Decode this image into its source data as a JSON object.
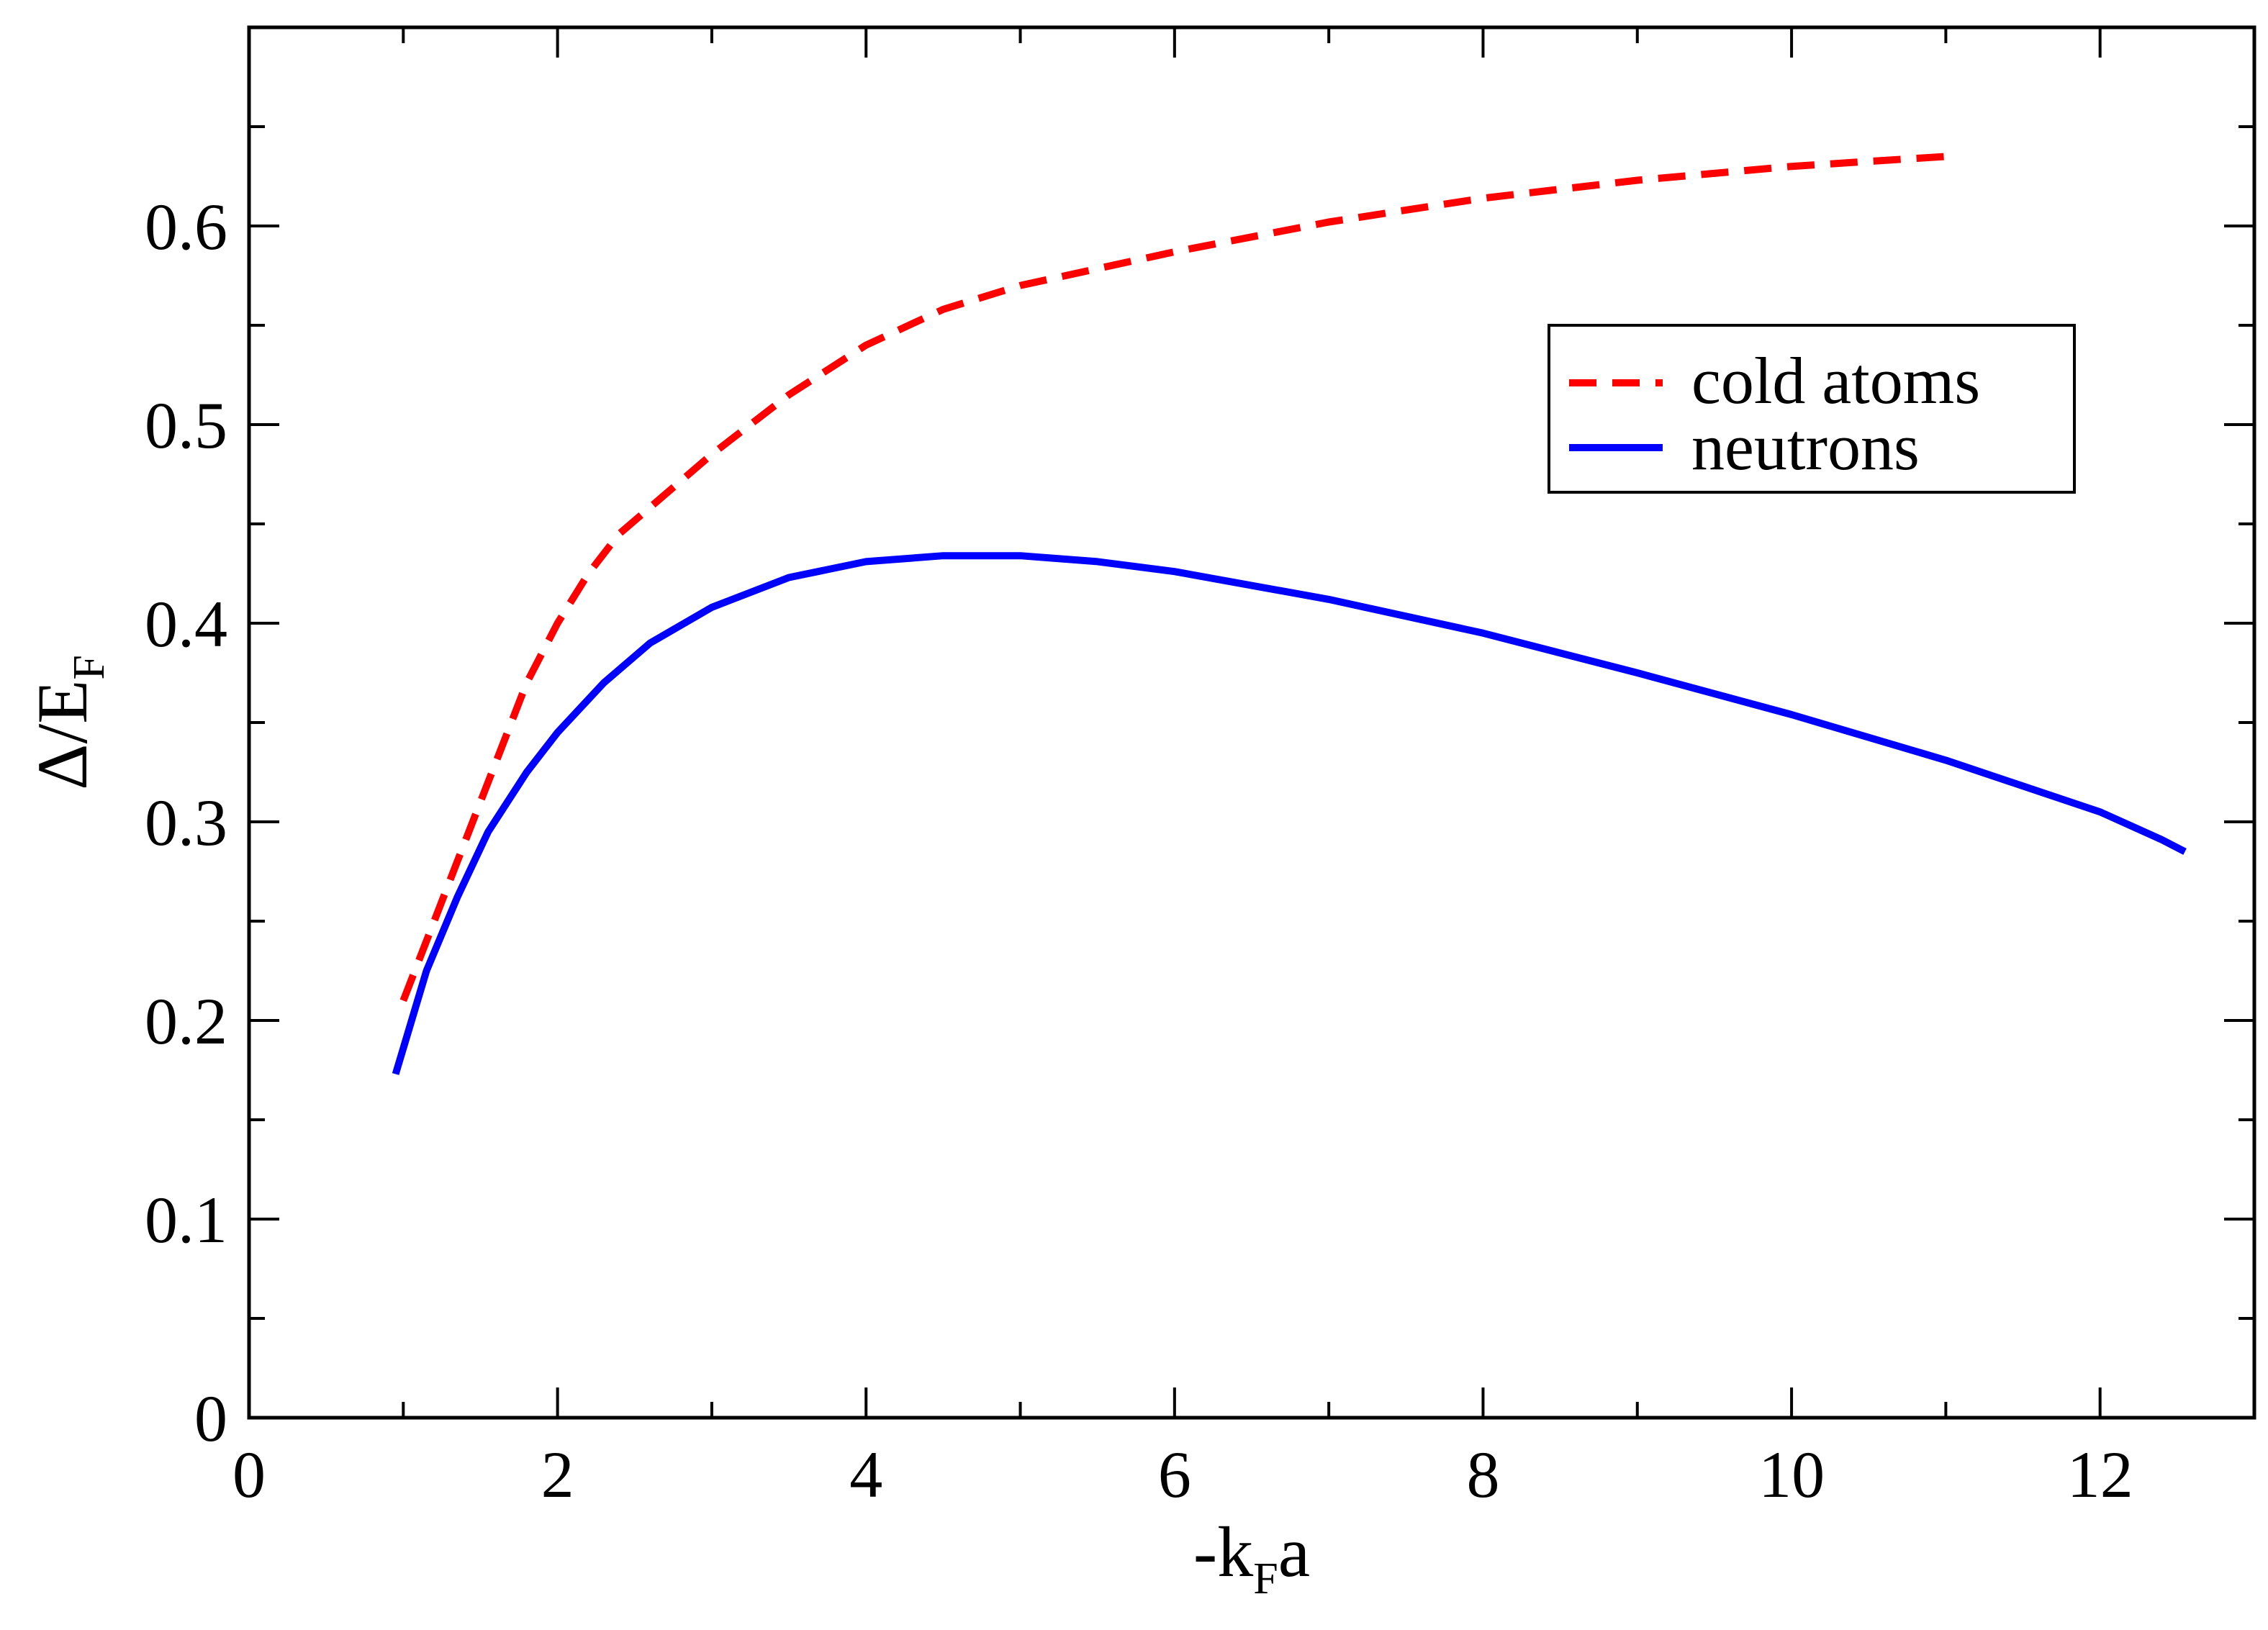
{
  "chart_data": {
    "type": "line",
    "title": "",
    "xlabel": {
      "prefix": "-k",
      "sub": "F",
      "suffix": "a"
    },
    "ylabel": {
      "prefix": "Δ/E",
      "sub": "F"
    },
    "xlim": [
      0,
      13
    ],
    "ylim": [
      0,
      0.7
    ],
    "x_ticks": [
      0,
      2,
      4,
      6,
      8,
      10,
      12
    ],
    "y_ticks": [
      0,
      0.1,
      0.2,
      0.3,
      0.4,
      0.5,
      0.6
    ],
    "x_tick_labels": [
      "0",
      "2",
      "4",
      "6",
      "8",
      "10",
      "12"
    ],
    "y_tick_labels": [
      "0",
      "0.1",
      "0.2",
      "0.3",
      "0.4",
      "0.5",
      "0.6"
    ],
    "grid": false,
    "legend_position": "right",
    "series": [
      {
        "name": "cold atoms",
        "color": "#ff0000",
        "style": "dashed",
        "x": [
          1.0,
          1.2,
          1.4,
          1.6,
          1.8,
          2.0,
          2.2,
          2.4,
          2.7,
          3.0,
          3.5,
          4.0,
          4.5,
          5.0,
          6.0,
          7.0,
          8.0,
          9.0,
          10.0,
          11.0
        ],
        "y": [
          0.21,
          0.25,
          0.29,
          0.33,
          0.37,
          0.4,
          0.425,
          0.445,
          0.465,
          0.485,
          0.515,
          0.54,
          0.558,
          0.57,
          0.587,
          0.602,
          0.614,
          0.623,
          0.63,
          0.635
        ]
      },
      {
        "name": "neutrons",
        "color": "#0000ff",
        "style": "solid",
        "x": [
          0.95,
          1.15,
          1.35,
          1.55,
          1.8,
          2.0,
          2.3,
          2.6,
          3.0,
          3.5,
          4.0,
          4.5,
          5.0,
          5.5,
          6.0,
          7.0,
          8.0,
          9.0,
          10.0,
          11.0,
          12.0,
          12.4,
          12.55
        ],
        "y": [
          0.173,
          0.225,
          0.262,
          0.295,
          0.325,
          0.345,
          0.37,
          0.39,
          0.408,
          0.423,
          0.431,
          0.434,
          0.434,
          0.431,
          0.426,
          0.412,
          0.395,
          0.375,
          0.354,
          0.331,
          0.305,
          0.291,
          0.285
        ]
      }
    ]
  }
}
